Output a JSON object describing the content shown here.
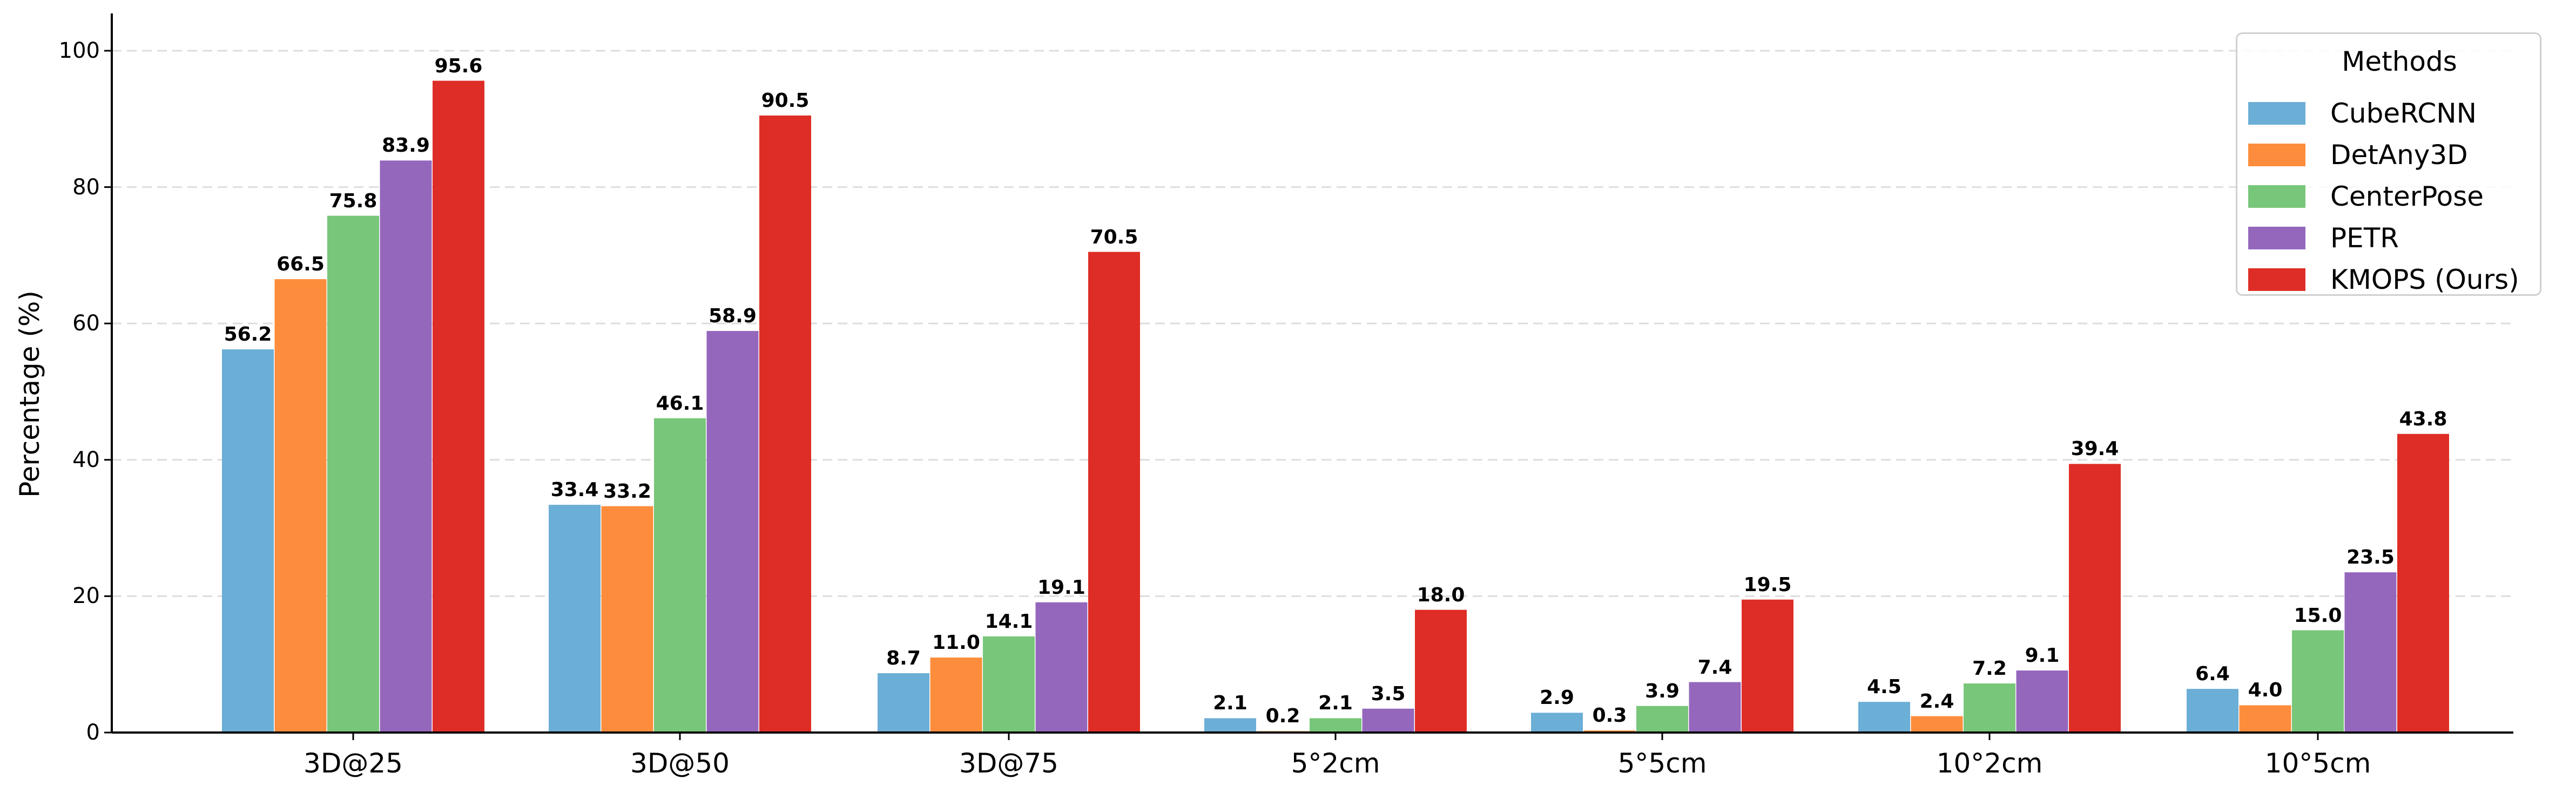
{
  "chart_data": {
    "type": "bar",
    "title": "",
    "xlabel": "",
    "ylabel": "Percentage (%)",
    "ylim": [
      0,
      105
    ],
    "yticks": [
      0,
      20,
      40,
      60,
      80,
      100
    ],
    "grid": {
      "axis": "y",
      "style": "dashed",
      "color": "#dddddd"
    },
    "legend": {
      "title": "Methods",
      "position": "upper right"
    },
    "categories": [
      "3D@25",
      "3D@50",
      "3D@75",
      "5°2cm",
      "5°5cm",
      "10°2cm",
      "10°5cm"
    ],
    "series": [
      {
        "name": "CubeRCNN",
        "color": "#6baed6",
        "values": [
          56.2,
          33.4,
          8.7,
          2.1,
          2.9,
          4.5,
          6.4
        ]
      },
      {
        "name": "DetAny3D",
        "color": "#fd8d3c",
        "values": [
          66.5,
          33.2,
          11.0,
          0.2,
          0.3,
          2.4,
          4.0
        ]
      },
      {
        "name": "CenterPose",
        "color": "#78c679",
        "values": [
          75.8,
          46.1,
          14.1,
          2.1,
          3.9,
          7.2,
          15.0
        ]
      },
      {
        "name": "PETR",
        "color": "#9467bd",
        "values": [
          83.9,
          58.9,
          19.1,
          3.5,
          7.4,
          9.1,
          23.5
        ]
      },
      {
        "name": "KMOPS (Ours)",
        "color": "#de2d26",
        "values": [
          95.6,
          90.5,
          70.5,
          18.0,
          19.5,
          39.4,
          43.8
        ]
      }
    ]
  }
}
